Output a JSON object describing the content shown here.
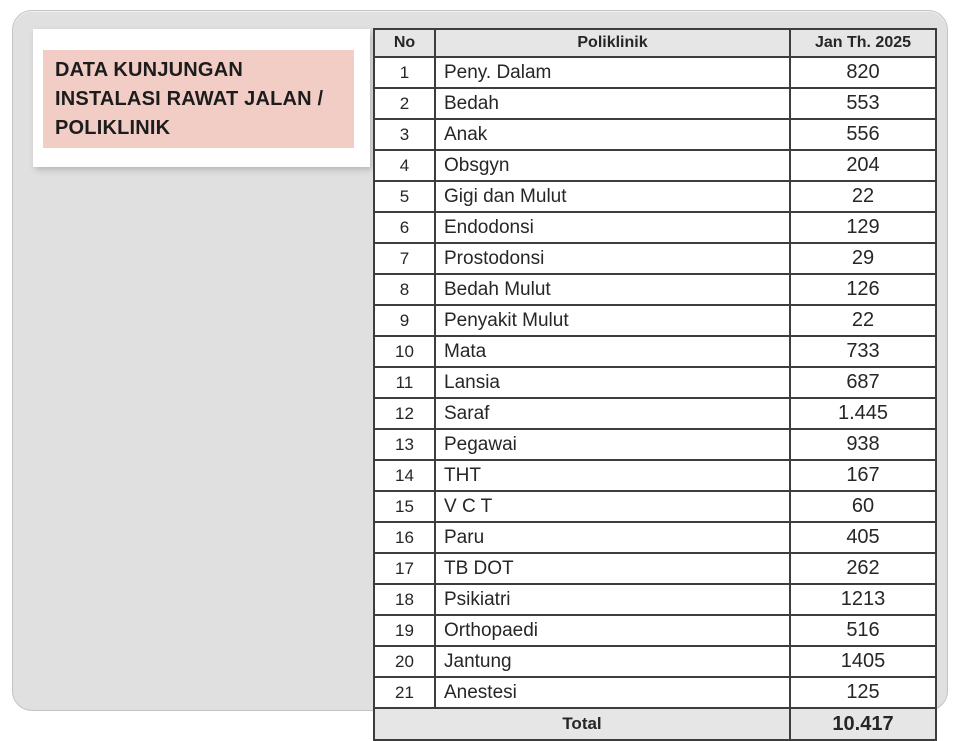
{
  "slide": {
    "title_lines": [
      "DATA KUNJUNGAN",
      "INSTALASI RAWAT JALAN /",
      "POLIKLINIK"
    ]
  },
  "colors": {
    "slide_bg": "#e0e0e0",
    "title_box_bg": "#f2cdc5",
    "table_header_bg": "#e7e6e6",
    "table_grid": "#3d3d3d"
  },
  "table": {
    "headers": [
      "No",
      "Poliklinik",
      "Jan Th. 2025"
    ],
    "rows": [
      {
        "no": "1",
        "poliklinik": "Peny. Dalam",
        "value": "820"
      },
      {
        "no": "2",
        "poliklinik": "Bedah",
        "value": "553"
      },
      {
        "no": "3",
        "poliklinik": "Anak",
        "value": "556"
      },
      {
        "no": "4",
        "poliklinik": "Obsgyn",
        "value": "204"
      },
      {
        "no": "5",
        "poliklinik": "Gigi dan Mulut",
        "value": "22"
      },
      {
        "no": "6",
        "poliklinik": "Endodonsi",
        "value": "129"
      },
      {
        "no": "7",
        "poliklinik": "Prostodonsi",
        "value": "29"
      },
      {
        "no": "8",
        "poliklinik": "Bedah Mulut",
        "value": "126"
      },
      {
        "no": "9",
        "poliklinik": "Penyakit Mulut",
        "value": "22"
      },
      {
        "no": "10",
        "poliklinik": "Mata",
        "value": "733"
      },
      {
        "no": "11",
        "poliklinik": "Lansia",
        "value": "687"
      },
      {
        "no": "12",
        "poliklinik": "Saraf",
        "value": "1.445"
      },
      {
        "no": "13",
        "poliklinik": "Pegawai",
        "value": "938"
      },
      {
        "no": "14",
        "poliklinik": "THT",
        "value": "167"
      },
      {
        "no": "15",
        "poliklinik": "V C T",
        "value": "60"
      },
      {
        "no": "16",
        "poliklinik": "Paru",
        "value": "405"
      },
      {
        "no": "17",
        "poliklinik": "TB DOT",
        "value": "262"
      },
      {
        "no": "18",
        "poliklinik": "Psikiatri",
        "value": "1213"
      },
      {
        "no": "19",
        "poliklinik": "Orthopaedi",
        "value": "516"
      },
      {
        "no": "20",
        "poliklinik": "Jantung",
        "value": "1405"
      },
      {
        "no": "21",
        "poliklinik": "Anestesi",
        "value": "125"
      }
    ],
    "total_label": "Total",
    "total_value": "10.417"
  }
}
